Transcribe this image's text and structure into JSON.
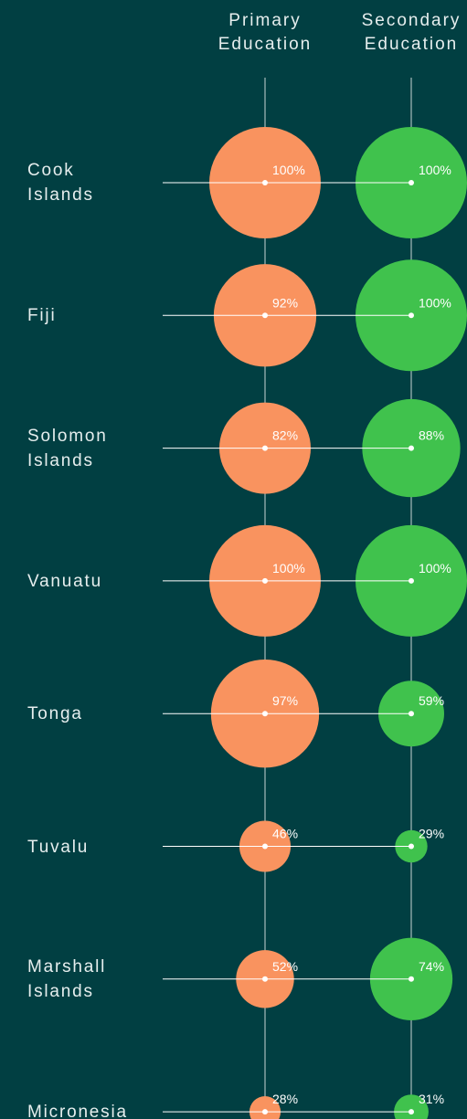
{
  "chart_data": {
    "type": "bubble",
    "categories": [
      "Cook Islands",
      "Fiji",
      "Solomon Islands",
      "Vanuatu",
      "Tonga",
      "Tuvalu",
      "Marshall Islands",
      "Micronesia"
    ],
    "series": [
      {
        "name": "Primary Education",
        "color": "#f9935f",
        "values": [
          100,
          92,
          82,
          100,
          97,
          46,
          52,
          28
        ],
        "value_labels": [
          "100%",
          "92%",
          "82%",
          "100%",
          "97%",
          "46%",
          "52%",
          "28%"
        ]
      },
      {
        "name": "Secondary Education",
        "color": "#40c24d",
        "values": [
          100,
          100,
          88,
          100,
          59,
          29,
          74,
          31
        ],
        "value_labels": [
          "100%",
          "100%",
          "88%",
          "100%",
          "59%",
          "29%",
          "74%",
          "31%"
        ]
      }
    ]
  }
}
